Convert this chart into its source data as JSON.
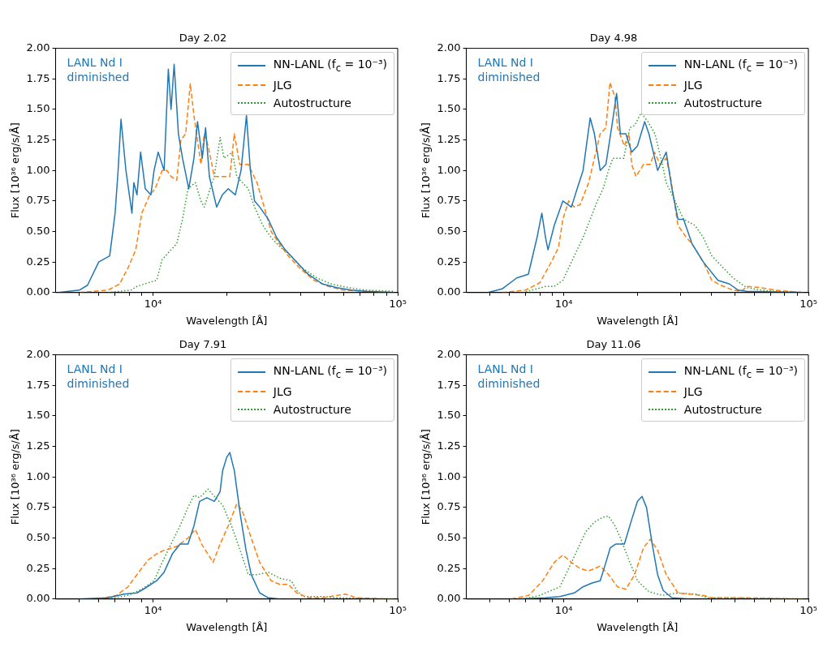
{
  "chart_data": [
    {
      "type": "line",
      "title": "Day 2.02",
      "xlabel": "Wavelength [Å]",
      "ylabel": "Flux [10³⁶ erg/s/Å]",
      "log": "x",
      "xlim": [
        4000,
        100000
      ],
      "ylim": [
        0,
        2
      ],
      "xticks": [
        {
          "value": 5000,
          "label": null
        },
        {
          "value": 6000,
          "label": null
        },
        {
          "value": 7000,
          "label": null
        },
        {
          "value": 8000,
          "label": null
        },
        {
          "value": 9000,
          "label": null
        },
        {
          "value": 10000,
          "label": "10⁴"
        },
        {
          "value": 20000,
          "label": null
        },
        {
          "value": 30000,
          "label": null
        },
        {
          "value": 40000,
          "label": null
        },
        {
          "value": 50000,
          "label": null
        },
        {
          "value": 60000,
          "label": null
        },
        {
          "value": 70000,
          "label": null
        },
        {
          "value": 80000,
          "label": null
        },
        {
          "value": 90000,
          "label": null
        },
        {
          "value": 100000,
          "label": "10⁵"
        }
      ],
      "yticks": [
        {
          "value": 0,
          "label": "0.00"
        },
        {
          "value": 0.25,
          "label": "0.25"
        },
        {
          "value": 0.5,
          "label": "0.50"
        },
        {
          "value": 0.75,
          "label": "0.75"
        },
        {
          "value": 1,
          "label": "1.00"
        },
        {
          "value": 1.25,
          "label": "1.25"
        },
        {
          "value": 1.5,
          "label": "1.50"
        },
        {
          "value": 1.75,
          "label": "1.75"
        },
        {
          "value": 2,
          "label": "2.00"
        }
      ],
      "legend": "top right",
      "annotations": [
        "LANL Nd I diminished"
      ],
      "series": [
        {
          "name": "NN-LANL (f$_{c}$ = 10⁻³)",
          "color": "#1f77b4",
          "line_style": "solid",
          "x": [
            4100,
            5000,
            5400,
            6000,
            6650,
            6800,
            7000,
            7200,
            7400,
            7750,
            8200,
            8350,
            8600,
            8900,
            9300,
            9800,
            10100,
            10500,
            11100,
            11550,
            11850,
            12200,
            12700,
            13200,
            14000,
            14700,
            15200,
            15900,
            16400,
            17000,
            18200,
            19200,
            20300,
            21700,
            22900,
            24100,
            25000,
            26000,
            27300,
            29600,
            32000,
            34700,
            37800,
            43000,
            49400,
            56300,
            64500,
            73800,
            97000
          ],
          "values": [
            0,
            0.02,
            0.06,
            0.25,
            0.3,
            0.45,
            0.65,
            1.0,
            1.42,
            1.0,
            0.65,
            0.9,
            0.8,
            1.15,
            0.85,
            0.8,
            1.0,
            1.15,
            1.0,
            1.83,
            1.5,
            1.87,
            1.3,
            1.1,
            0.85,
            1.1,
            1.4,
            1.1,
            1.35,
            0.95,
            0.7,
            0.8,
            0.85,
            0.8,
            1.0,
            1.45,
            1.0,
            0.75,
            0.7,
            0.6,
            0.45,
            0.35,
            0.27,
            0.15,
            0.07,
            0.04,
            0.02,
            0.01,
            0
          ]
        },
        {
          "name": "JLG",
          "color": "#ff7f0e",
          "line_style": "dashed",
          "x": [
            5000,
            6550,
            7300,
            7900,
            8500,
            9000,
            9700,
            10200,
            10900,
            11400,
            11850,
            12500,
            13000,
            13600,
            14200,
            14700,
            15700,
            16200,
            16800,
            17800,
            19200,
            20600,
            21500,
            22600,
            24500,
            26600,
            28100,
            30400,
            32800,
            35700,
            39800,
            45500,
            52100,
            59600,
            73800,
            97000
          ],
          "values": [
            0,
            0.02,
            0.07,
            0.2,
            0.35,
            0.65,
            0.8,
            0.85,
            1.0,
            1.0,
            0.95,
            0.92,
            1.25,
            1.3,
            1.71,
            1.45,
            1.05,
            1.3,
            1.2,
            0.95,
            0.95,
            0.95,
            1.3,
            1.05,
            1.05,
            0.9,
            0.74,
            0.5,
            0.4,
            0.3,
            0.2,
            0.1,
            0.05,
            0.02,
            0.01,
            0
          ]
        },
        {
          "name": "Autostructure",
          "color": "#2ca02c",
          "line_style": "dotted",
          "x": [
            6550,
            8130,
            8600,
            9550,
            10350,
            10900,
            11850,
            12500,
            13200,
            13900,
            14900,
            15700,
            16200,
            16800,
            17800,
            18800,
            19500,
            21100,
            22000,
            23200,
            24500,
            26000,
            28100,
            30400,
            32800,
            36700,
            40800,
            46700,
            53500,
            63000,
            73800,
            97000
          ],
          "values": [
            0,
            0.02,
            0.05,
            0.08,
            0.1,
            0.27,
            0.35,
            0.4,
            0.6,
            0.85,
            0.9,
            0.75,
            0.7,
            0.8,
            0.95,
            1.27,
            1.1,
            1.15,
            0.95,
            0.9,
            0.85,
            0.7,
            0.55,
            0.45,
            0.38,
            0.3,
            0.2,
            0.12,
            0.07,
            0.04,
            0.02,
            0.01
          ]
        }
      ]
    },
    {
      "type": "line",
      "title": "Day 4.98",
      "xlabel": "Wavelength [Å]",
      "ylabel": "Flux [10³⁶ erg/s/Å]",
      "log": "x",
      "xlim": [
        4000,
        100000
      ],
      "ylim": [
        0,
        2
      ],
      "xticks": [
        {
          "value": 5000,
          "label": null
        },
        {
          "value": 6000,
          "label": null
        },
        {
          "value": 7000,
          "label": null
        },
        {
          "value": 8000,
          "label": null
        },
        {
          "value": 9000,
          "label": null
        },
        {
          "value": 10000,
          "label": "10⁴"
        },
        {
          "value": 20000,
          "label": null
        },
        {
          "value": 30000,
          "label": null
        },
        {
          "value": 40000,
          "label": null
        },
        {
          "value": 50000,
          "label": null
        },
        {
          "value": 60000,
          "label": null
        },
        {
          "value": 70000,
          "label": null
        },
        {
          "value": 80000,
          "label": null
        },
        {
          "value": 90000,
          "label": null
        },
        {
          "value": 100000,
          "label": "10⁵"
        }
      ],
      "yticks": [
        {
          "value": 0,
          "label": "0.00"
        },
        {
          "value": 0.25,
          "label": "0.25"
        },
        {
          "value": 0.5,
          "label": "0.50"
        },
        {
          "value": 0.75,
          "label": "0.75"
        },
        {
          "value": 1,
          "label": "1.00"
        },
        {
          "value": 1.25,
          "label": "1.25"
        },
        {
          "value": 1.5,
          "label": "1.50"
        },
        {
          "value": 1.75,
          "label": "1.75"
        },
        {
          "value": 2,
          "label": "2.00"
        }
      ],
      "legend": "top right",
      "annotations": [
        "LANL Nd I diminished"
      ],
      "series": [
        {
          "name": "NN-LANL (f$_{c}$ = 10⁻³)",
          "color": "#1f77b4",
          "line_style": "solid",
          "x": [
            4900,
            5600,
            6430,
            7170,
            7780,
            8140,
            8430,
            8630,
            9150,
            9920,
            10750,
            11350,
            12000,
            12830,
            13350,
            14100,
            14880,
            15700,
            16450,
            17050,
            17950,
            18960,
            20020,
            21430,
            22300,
            24200,
            26240,
            27700,
            29300,
            30900,
            33450,
            37200,
            42700,
            47600,
            51600,
            55870,
            96000
          ],
          "values": [
            0,
            0.03,
            0.12,
            0.15,
            0.45,
            0.65,
            0.45,
            0.35,
            0.55,
            0.75,
            0.7,
            0.85,
            1.0,
            1.43,
            1.3,
            1.0,
            1.05,
            1.35,
            1.63,
            1.3,
            1.3,
            1.15,
            1.2,
            1.4,
            1.3,
            1.0,
            1.15,
            0.85,
            0.6,
            0.6,
            0.4,
            0.25,
            0.1,
            0.07,
            0.02,
            0.01,
            0
          ]
        },
        {
          "name": "JLG",
          "color": "#ff7f0e",
          "line_style": "dashed",
          "x": [
            5600,
            6980,
            7990,
            8900,
            9530,
            9920,
            10480,
            11050,
            11670,
            12650,
            13350,
            14100,
            14880,
            15460,
            16200,
            16600,
            17700,
            18500,
            18960,
            19750,
            21200,
            22600,
            23500,
            24750,
            26240,
            27300,
            29300,
            31750,
            33450,
            37200,
            40300,
            43800,
            49200,
            53300,
            56000,
            64000,
            73000,
            96000
          ],
          "values": [
            0,
            0.02,
            0.08,
            0.25,
            0.37,
            0.6,
            0.75,
            0.7,
            0.72,
            0.9,
            1.1,
            1.3,
            1.35,
            1.72,
            1.6,
            1.35,
            1.2,
            1.3,
            1.05,
            0.95,
            1.05,
            1.05,
            1.15,
            1.05,
            1.1,
            0.95,
            0.55,
            0.45,
            0.4,
            0.25,
            0.1,
            0.06,
            0.02,
            0.01,
            0.05,
            0.04,
            0.02,
            0
          ]
        },
        {
          "name": "Autostructure",
          "color": "#2ca02c",
          "line_style": "dotted",
          "x": [
            6800,
            8440,
            9150,
            9920,
            11050,
            12000,
            12830,
            13730,
            14480,
            15250,
            15890,
            16570,
            17590,
            18650,
            19520,
            20700,
            22100,
            23600,
            25300,
            26240,
            28500,
            30900,
            34400,
            37200,
            40300,
            45000,
            49200,
            53300,
            56000,
            64000,
            73000,
            96000
          ],
          "values": [
            0,
            0.05,
            0.05,
            0.1,
            0.3,
            0.45,
            0.6,
            0.75,
            0.85,
            1.0,
            1.1,
            1.1,
            1.1,
            1.35,
            1.37,
            1.47,
            1.4,
            1.3,
            1.05,
            0.9,
            0.75,
            0.6,
            0.55,
            0.45,
            0.3,
            0.2,
            0.12,
            0.07,
            0.04,
            0.02,
            0.01,
            0
          ]
        }
      ]
    },
    {
      "type": "line",
      "title": "Day 7.91",
      "xlabel": "Wavelength [Å]",
      "ylabel": "Flux [10³⁶ erg/s/Å]",
      "log": "x",
      "xlim": [
        4000,
        100000
      ],
      "ylim": [
        0,
        2
      ],
      "xticks": [
        {
          "value": 5000,
          "label": null
        },
        {
          "value": 6000,
          "label": null
        },
        {
          "value": 7000,
          "label": null
        },
        {
          "value": 8000,
          "label": null
        },
        {
          "value": 9000,
          "label": null
        },
        {
          "value": 10000,
          "label": "10⁴"
        },
        {
          "value": 20000,
          "label": null
        },
        {
          "value": 30000,
          "label": null
        },
        {
          "value": 40000,
          "label": null
        },
        {
          "value": 50000,
          "label": null
        },
        {
          "value": 60000,
          "label": null
        },
        {
          "value": 70000,
          "label": null
        },
        {
          "value": 80000,
          "label": null
        },
        {
          "value": 90000,
          "label": null
        },
        {
          "value": 100000,
          "label": "10⁵"
        }
      ],
      "yticks": [
        {
          "value": 0,
          "label": "0.00"
        },
        {
          "value": 0.25,
          "label": "0.25"
        },
        {
          "value": 0.5,
          "label": "0.50"
        },
        {
          "value": 0.75,
          "label": "0.75"
        },
        {
          "value": 1,
          "label": "1.00"
        },
        {
          "value": 1.25,
          "label": "1.25"
        },
        {
          "value": 1.5,
          "label": "1.50"
        },
        {
          "value": 1.75,
          "label": "1.75"
        },
        {
          "value": 2,
          "label": "2.00"
        }
      ],
      "legend": "top right",
      "annotations": [
        "LANL Nd I diminished"
      ],
      "series": [
        {
          "name": "NN-LANL (f$_{c}$ = 10⁻³)",
          "color": "#1f77b4",
          "line_style": "solid",
          "x": [
            5000,
            6550,
            7600,
            8600,
            9300,
            10350,
            11100,
            12000,
            12900,
            13900,
            14700,
            15500,
            16600,
            17800,
            18800,
            19250,
            20000,
            20600,
            21500,
            22700,
            24000,
            25200,
            27300,
            29600,
            33000
          ],
          "values": [
            0,
            0.01,
            0.04,
            0.05,
            0.09,
            0.15,
            0.22,
            0.37,
            0.45,
            0.45,
            0.6,
            0.8,
            0.83,
            0.8,
            0.88,
            1.05,
            1.16,
            1.2,
            1.05,
            0.7,
            0.4,
            0.2,
            0.05,
            0.01,
            0
          ]
        },
        {
          "name": "JLG",
          "color": "#ff7f0e",
          "line_style": "dashed",
          "x": [
            6000,
            7100,
            7900,
            8600,
            9550,
            10350,
            11100,
            12500,
            13900,
            14900,
            15800,
            17600,
            18800,
            20300,
            22000,
            23200,
            25200,
            27300,
            30400,
            33000,
            35700,
            38700,
            43000,
            49400,
            61000,
            68000,
            97000
          ],
          "values": [
            0,
            0.03,
            0.1,
            0.2,
            0.32,
            0.37,
            0.4,
            0.43,
            0.5,
            0.57,
            0.45,
            0.3,
            0.45,
            0.6,
            0.78,
            0.72,
            0.5,
            0.3,
            0.15,
            0.12,
            0.12,
            0.05,
            0.01,
            0.01,
            0.04,
            0.01,
            0
          ]
        },
        {
          "name": "Autostructure",
          "color": "#2ca02c",
          "line_style": "dotted",
          "x": [
            6550,
            7900,
            9000,
            10100,
            10900,
            11850,
            12900,
            13900,
            14700,
            15500,
            16800,
            18200,
            19250,
            21100,
            22700,
            24500,
            26600,
            29600,
            33000,
            36700,
            38700,
            41000,
            49400,
            56300,
            97000
          ],
          "values": [
            0,
            0.03,
            0.08,
            0.15,
            0.3,
            0.45,
            0.6,
            0.75,
            0.85,
            0.83,
            0.9,
            0.82,
            0.77,
            0.58,
            0.4,
            0.2,
            0.2,
            0.22,
            0.17,
            0.15,
            0.07,
            0.02,
            0.02,
            0.01,
            0
          ]
        }
      ]
    },
    {
      "type": "line",
      "title": "Day 11.06",
      "xlabel": "Wavelength [Å]",
      "ylabel": "Flux [10³⁶ erg/s/Å]",
      "log": "x",
      "xlim": [
        4000,
        100000
      ],
      "ylim": [
        0,
        2
      ],
      "xticks": [
        {
          "value": 5000,
          "label": null
        },
        {
          "value": 6000,
          "label": null
        },
        {
          "value": 7000,
          "label": null
        },
        {
          "value": 8000,
          "label": null
        },
        {
          "value": 9000,
          "label": null
        },
        {
          "value": 10000,
          "label": "10⁴"
        },
        {
          "value": 20000,
          "label": null
        },
        {
          "value": 30000,
          "label": null
        },
        {
          "value": 40000,
          "label": null
        },
        {
          "value": 50000,
          "label": null
        },
        {
          "value": 60000,
          "label": null
        },
        {
          "value": 70000,
          "label": null
        },
        {
          "value": 80000,
          "label": null
        },
        {
          "value": 90000,
          "label": null
        },
        {
          "value": 100000,
          "label": "10⁵"
        }
      ],
      "yticks": [
        {
          "value": 0,
          "label": "0.00"
        },
        {
          "value": 0.25,
          "label": "0.25"
        },
        {
          "value": 0.5,
          "label": "0.50"
        },
        {
          "value": 0.75,
          "label": "0.75"
        },
        {
          "value": 1,
          "label": "1.00"
        },
        {
          "value": 1.25,
          "label": "1.25"
        },
        {
          "value": 1.5,
          "label": "1.50"
        },
        {
          "value": 1.75,
          "label": "1.75"
        },
        {
          "value": 2,
          "label": "2.00"
        }
      ],
      "legend": "top right",
      "annotations": [
        "LANL Nd I diminished"
      ],
      "series": [
        {
          "name": "NN-LANL (f$_{c}$ = 10⁻³)",
          "color": "#1f77b4",
          "line_style": "solid",
          "x": [
            6440,
            8440,
            9650,
            11050,
            12000,
            13000,
            14100,
            14880,
            15500,
            16300,
            17700,
            18960,
            20020,
            20900,
            21800,
            23000,
            24200,
            25500,
            27700,
            32600
          ],
          "values": [
            0,
            0.01,
            0.02,
            0.05,
            0.1,
            0.13,
            0.15,
            0.3,
            0.42,
            0.45,
            0.45,
            0.65,
            0.8,
            0.84,
            0.75,
            0.45,
            0.2,
            0.07,
            0.01,
            0
          ]
        },
        {
          "name": "JLG",
          "color": "#ff7f0e",
          "line_style": "dashed",
          "x": [
            6100,
            7200,
            8210,
            9150,
            9920,
            10750,
            11670,
            12650,
            14100,
            15250,
            16600,
            17950,
            19500,
            21200,
            22600,
            24200,
            26240,
            29300,
            32600,
            37200,
            40300,
            56000,
            96000
          ],
          "values": [
            0,
            0.03,
            0.15,
            0.3,
            0.36,
            0.3,
            0.25,
            0.23,
            0.27,
            0.2,
            0.1,
            0.08,
            0.2,
            0.42,
            0.49,
            0.4,
            0.2,
            0.05,
            0.04,
            0.03,
            0.01,
            0.01,
            0
          ]
        },
        {
          "name": "Autostructure",
          "color": "#2ca02c",
          "line_style": "dotted",
          "x": [
            6800,
            7990,
            8900,
            9650,
            10480,
            11350,
            12300,
            13350,
            14480,
            15250,
            16200,
            17050,
            18650,
            20020,
            22300,
            25300,
            29300,
            34700,
            39000,
            49200,
            96000
          ],
          "values": [
            0,
            0.03,
            0.07,
            0.1,
            0.25,
            0.4,
            0.55,
            0.63,
            0.67,
            0.68,
            0.6,
            0.5,
            0.3,
            0.15,
            0.06,
            0.03,
            0.05,
            0.04,
            0.01,
            0.01,
            0
          ]
        }
      ]
    }
  ]
}
